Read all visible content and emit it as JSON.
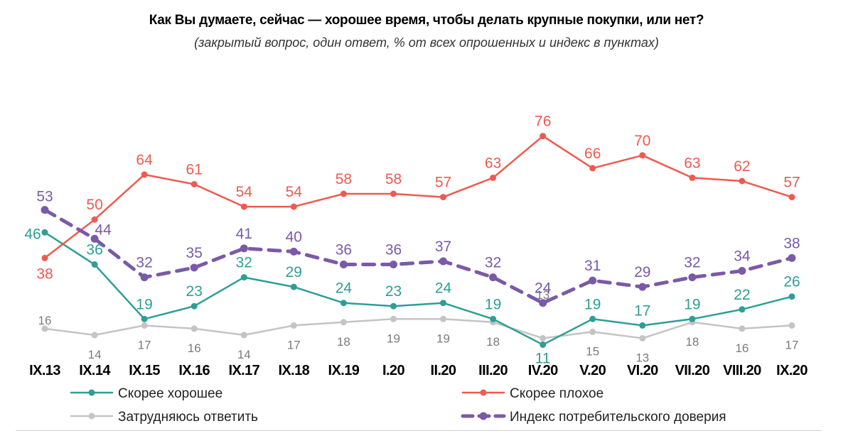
{
  "chart_data": {
    "type": "line",
    "title": "Как Вы думаете, сейчас — хорошее время, чтобы делать крупные покупки, или нет?",
    "subtitle": "(закрытый вопрос, один ответ, % от всех опрошенных и индекс в пунктах)",
    "categories": [
      "IX.13",
      "IX.14",
      "IX.15",
      "IX.16",
      "IX.17",
      "IX.18",
      "IX.19",
      "I.20",
      "II.20",
      "III.20",
      "IV.20",
      "V.20",
      "VI.20",
      "VII.20",
      "VIII.20",
      "IX.20"
    ],
    "ylim": [
      0,
      85
    ],
    "grid": false,
    "legend_position": "bottom",
    "series": [
      {
        "key": "good",
        "name": "Скорее хорошее",
        "color": "#2e9e96",
        "dash": false,
        "values": [
          46,
          36,
          19,
          23,
          32,
          29,
          24,
          23,
          24,
          19,
          11,
          19,
          17,
          19,
          22,
          26
        ]
      },
      {
        "key": "bad",
        "name": "Скорее плохое",
        "color": "#ee5a50",
        "dash": false,
        "values": [
          38,
          50,
          64,
          61,
          54,
          54,
          58,
          58,
          57,
          63,
          76,
          66,
          70,
          63,
          62,
          57
        ]
      },
      {
        "key": "hard",
        "name": "Затрудняюсь ответить",
        "color": "#c4c4c4",
        "dash": false,
        "values": [
          16,
          14,
          17,
          16,
          14,
          17,
          18,
          19,
          19,
          18,
          13,
          15,
          13,
          18,
          16,
          17
        ]
      },
      {
        "key": "index",
        "name": "Индекс потребительского доверия",
        "color": "#7a5aa6",
        "dash": true,
        "values": [
          53,
          44,
          32,
          35,
          41,
          40,
          36,
          36,
          37,
          32,
          24,
          31,
          29,
          32,
          34,
          38
        ]
      }
    ]
  }
}
